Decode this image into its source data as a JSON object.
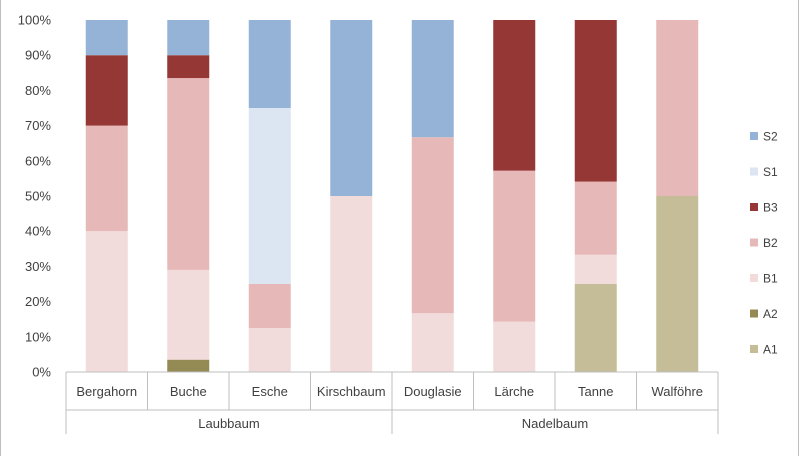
{
  "chart_data": {
    "type": "bar",
    "stacked": "percent",
    "categories": [
      "Bergahorn",
      "Buche",
      "Esche",
      "Kirschbaum",
      "Douglasie",
      "Lärche",
      "Tanne",
      "Walföhre"
    ],
    "groups": [
      {
        "label": "Laubbaum",
        "categories": [
          "Bergahorn",
          "Buche",
          "Esche",
          "Kirschbaum"
        ]
      },
      {
        "label": "Nadelbaum",
        "categories": [
          "Douglasie",
          "Lärche",
          "Tanne",
          "Walföhre"
        ]
      }
    ],
    "series": [
      {
        "name": "A1",
        "color": "#c4bd97",
        "values": [
          0,
          0,
          0,
          0,
          0,
          0,
          25,
          50
        ]
      },
      {
        "name": "A2",
        "color": "#948a54",
        "values": [
          0,
          3.5,
          0,
          0,
          0,
          0,
          0,
          0
        ]
      },
      {
        "name": "B1",
        "color": "#f2dcdb",
        "values": [
          40,
          25.5,
          12.5,
          50,
          16.7,
          14.3,
          8.3,
          0
        ]
      },
      {
        "name": "B2",
        "color": "#e6b9b8",
        "values": [
          30,
          54.5,
          12.5,
          0,
          50,
          42.9,
          20.8,
          50
        ]
      },
      {
        "name": "B3",
        "color": "#953735",
        "values": [
          20,
          6.5,
          0,
          0,
          0,
          42.8,
          45.9,
          0
        ]
      },
      {
        "name": "S1",
        "color": "#dce6f2",
        "values": [
          0,
          0,
          50,
          0,
          0,
          0,
          0,
          0
        ]
      },
      {
        "name": "S2",
        "color": "#95b3d7",
        "values": [
          10,
          10,
          25,
          50,
          33.3,
          0,
          0,
          0
        ]
      }
    ],
    "ylim": [
      0,
      100
    ],
    "yticks": [
      "0%",
      "10%",
      "20%",
      "30%",
      "40%",
      "50%",
      "60%",
      "70%",
      "80%",
      "90%",
      "100%"
    ],
    "legend": {
      "placement": "right",
      "order": [
        "S2",
        "S1",
        "B3",
        "B2",
        "B1",
        "A2",
        "A1"
      ]
    },
    "grid": false,
    "title": "",
    "xlabel": "",
    "ylabel": ""
  }
}
